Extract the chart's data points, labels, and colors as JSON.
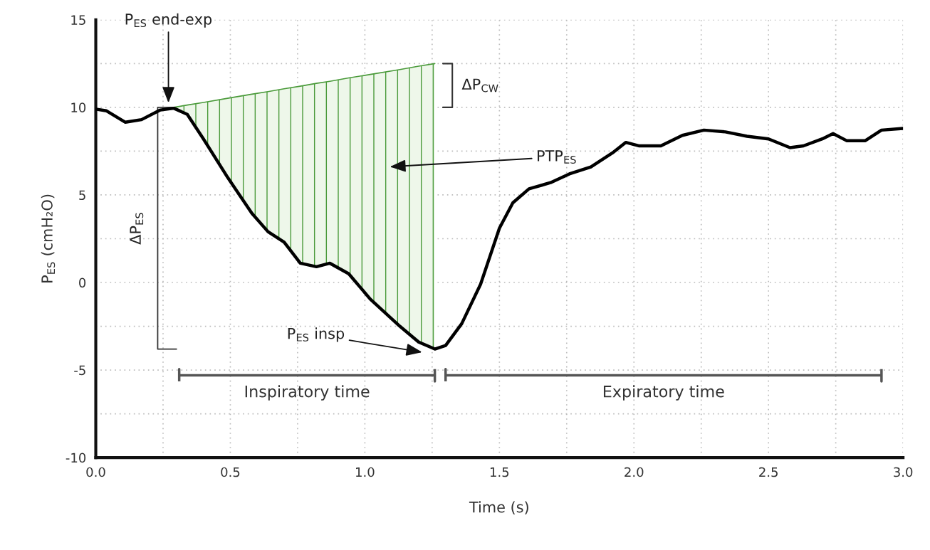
{
  "chart_data": {
    "type": "line",
    "xlabel": "Time (s)",
    "ylabel": "P$_{ES}$ (cmH₂O)",
    "series": [
      {
        "color": "#000000",
        "x": [
          0,
          0.04,
          0.11,
          0.17,
          0.24,
          0.29,
          0.34,
          0.4,
          0.49,
          0.58,
          0.64,
          0.7,
          0.76,
          0.82,
          0.87,
          0.94,
          1.02,
          1.13,
          1.2,
          1.26,
          1.3,
          1.36,
          1.43,
          1.5,
          1.55,
          1.61,
          1.69,
          1.76,
          1.84,
          1.92,
          1.97,
          2.02,
          2.1,
          2.18,
          2.26,
          2.34,
          2.42,
          2.5,
          2.58,
          2.63,
          2.7,
          2.74,
          2.79,
          2.86,
          2.92,
          3.0
        ],
        "values": [
          9.9,
          9.8,
          9.15,
          9.3,
          9.85,
          9.95,
          9.6,
          8.2,
          6.0,
          3.95,
          2.9,
          2.3,
          1.1,
          0.9,
          1.1,
          0.5,
          -0.95,
          -2.5,
          -3.4,
          -3.8,
          -3.6,
          -2.35,
          -0.1,
          3.1,
          4.55,
          5.35,
          5.7,
          6.2,
          6.6,
          7.4,
          8.0,
          7.8,
          7.8,
          8.4,
          8.7,
          8.6,
          8.35,
          8.2,
          7.7,
          7.8,
          8.2,
          8.5,
          8.1,
          8.1,
          8.7,
          8.8
        ]
      },
      {
        "color": "#4a9a3a",
        "x": [
          0.29,
          0.34,
          0.4,
          0.49,
          0.58,
          0.64,
          0.7,
          0.76,
          0.82,
          0.87,
          0.94,
          1.02,
          1.13,
          1.2,
          1.26
        ],
        "values": [
          10.0,
          10.13,
          10.28,
          10.52,
          10.75,
          10.9,
          11.06,
          11.21,
          11.37,
          11.49,
          11.68,
          11.88,
          12.16,
          12.35,
          12.5
        ],
        "upper": [
          10.0,
          10.13,
          10.28,
          10.52,
          10.75,
          10.9,
          11.06,
          11.21,
          11.37,
          11.49,
          11.68,
          11.88,
          12.16,
          12.35,
          12.5
        ],
        "lower": [
          9.95,
          9.6,
          8.2,
          6.0,
          3.95,
          2.9,
          2.3,
          1.1,
          0.9,
          1.1,
          0.5,
          -0.95,
          -2.5,
          -3.4,
          -3.8
        ]
      }
    ],
    "xlim": [
      0,
      3.0
    ],
    "ylim": [
      -10,
      15
    ],
    "xticks": [
      {
        "value": 0,
        "label": "0.0"
      },
      {
        "value": 0.25,
        "label": null
      },
      {
        "value": 0.5,
        "label": "0.5"
      },
      {
        "value": 0.75,
        "label": null
      },
      {
        "value": 1.0,
        "label": "1.0"
      },
      {
        "value": 1.25,
        "label": null
      },
      {
        "value": 1.5,
        "label": "1.5"
      },
      {
        "value": 1.75,
        "label": null
      },
      {
        "value": 2.0,
        "label": "2.0"
      },
      {
        "value": 2.25,
        "label": null
      },
      {
        "value": 2.5,
        "label": "2.5"
      },
      {
        "value": 2.75,
        "label": null
      },
      {
        "value": 3.0,
        "label": "3.0"
      }
    ],
    "yticks": [
      -10,
      {
        "value": -7.5,
        "label": null
      },
      -5,
      {
        "value": -2.5,
        "label": null
      },
      0,
      {
        "value": 2.5,
        "label": null
      },
      5,
      {
        "value": 7.5,
        "label": null
      },
      10,
      {
        "value": 12.5,
        "label": null
      },
      15
    ],
    "grid": true,
    "legend": false,
    "annotations": [
      "P$_{ES}$ end-exp",
      "ΔP$_{CW}$",
      "PTP$_{ES}$",
      "ΔP$_{ES}$",
      "P$_{ES}$ insp",
      "Inspiratory time",
      "Expiratory time"
    ]
  }
}
